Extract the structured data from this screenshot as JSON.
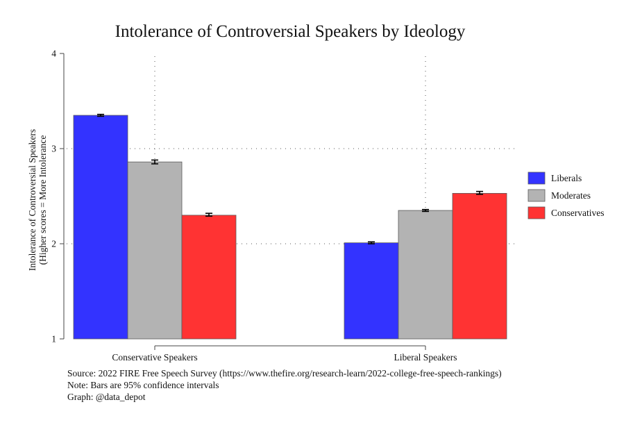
{
  "chart_data": {
    "type": "bar",
    "title": "Intolerance of Controversial Speakers by Ideology",
    "ylabel_lines": [
      "Intolerance of Controversial Speakers",
      "(Higher scores = More Intolerance"
    ],
    "xlabel": "",
    "ylim": [
      1,
      4
    ],
    "yticks": [
      1,
      2,
      3,
      4
    ],
    "grid": true,
    "legend_position": "right",
    "categories": [
      "Conservative Speakers",
      "Liberal Speakers"
    ],
    "series": [
      {
        "name": "Liberals",
        "color": "#3333ff",
        "values": [
          3.35,
          2.01
        ],
        "ci_low": [
          3.34,
          2.0
        ],
        "ci_high": [
          3.36,
          2.02
        ]
      },
      {
        "name": "Moderates",
        "color": "#b3b3b3",
        "values": [
          2.86,
          2.35
        ],
        "ci_low": [
          2.84,
          2.34
        ],
        "ci_high": [
          2.88,
          2.36
        ]
      },
      {
        "name": "Conservatives",
        "color": "#ff3333",
        "values": [
          2.3,
          2.53
        ],
        "ci_low": [
          2.29,
          2.52
        ],
        "ci_high": [
          2.32,
          2.55
        ]
      }
    ],
    "notes": [
      "Source: 2022 FIRE Free Speech Survey (https://www.thefire.org/research-learn/2022-college-free-speech-rankings)",
      "Note: Bars are 95% confidence intervals",
      "Graph: @data_depot"
    ]
  }
}
